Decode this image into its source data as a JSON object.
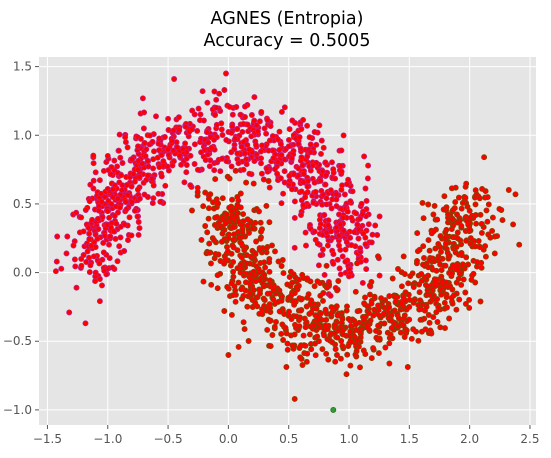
{
  "chart_data": {
    "type": "scatter",
    "title": "AGNES (Entropia)",
    "subtitle": "Accuracy = 0.5005",
    "xlabel": "",
    "ylabel": "",
    "xlim": [
      -1.57,
      2.55
    ],
    "ylim": [
      -1.11,
      1.57
    ],
    "x_ticks": [
      -1.5,
      -1.0,
      -0.5,
      0.0,
      0.5,
      1.0,
      1.5,
      2.0,
      2.5
    ],
    "y_ticks": [
      -1.0,
      -0.5,
      0.0,
      0.5,
      1.0,
      1.5
    ],
    "x_tick_labels": [
      "−1.5",
      "−1.0",
      "−0.5",
      "0.0",
      "0.5",
      "1.0",
      "1.5",
      "2.0",
      "2.5"
    ],
    "y_tick_labels": [
      "−1.0",
      "−0.5",
      "0.0",
      "0.5",
      "1.0",
      "1.5"
    ],
    "grid": true,
    "colors": {
      "background": "#e5e5e5",
      "grid": "#ffffff",
      "marker_fill": "#ff0000",
      "edge_upper_moon": "#c0208a",
      "edge_lower_moon": "#7a4a00",
      "edge_green_point": "#2e9e2e"
    },
    "series": [
      {
        "shape": "upper-moon",
        "edge": "edge_upper_moon",
        "samples": [
          [
            -1.22,
            0.1
          ],
          [
            -1.2,
            0.3
          ],
          [
            -1.15,
            0.52
          ],
          [
            -1.1,
            0.73
          ],
          [
            -1.0,
            0.85
          ],
          [
            -0.85,
            0.95
          ],
          [
            -0.7,
            1.05
          ],
          [
            -0.5,
            1.12
          ],
          [
            -0.3,
            1.18
          ],
          [
            -0.1,
            1.2
          ],
          [
            0.1,
            1.15
          ],
          [
            0.3,
            1.05
          ],
          [
            0.5,
            0.92
          ],
          [
            0.7,
            0.78
          ],
          [
            0.85,
            0.6
          ],
          [
            0.95,
            0.4
          ],
          [
            1.02,
            0.2
          ],
          [
            -1.1,
            0.0
          ],
          [
            -0.95,
            0.3
          ],
          [
            -0.75,
            0.75
          ]
        ]
      },
      {
        "shape": "lower-moon",
        "edge": "edge_lower_moon",
        "samples": [
          [
            0.0,
            0.25
          ],
          [
            0.1,
            0.0
          ],
          [
            0.2,
            -0.2
          ],
          [
            0.35,
            -0.35
          ],
          [
            0.55,
            -0.45
          ],
          [
            0.75,
            -0.5
          ],
          [
            0.95,
            -0.45
          ],
          [
            1.15,
            -0.4
          ],
          [
            1.35,
            -0.35
          ],
          [
            1.5,
            -0.25
          ],
          [
            1.65,
            -0.1
          ],
          [
            1.8,
            0.05
          ],
          [
            1.9,
            0.25
          ],
          [
            2.0,
            0.45
          ],
          [
            2.05,
            0.6
          ],
          [
            2.15,
            0.55
          ],
          [
            1.7,
            0.3
          ],
          [
            0.9,
            -0.6
          ],
          [
            0.65,
            -0.65
          ],
          [
            1.2,
            -0.55
          ]
        ]
      }
    ],
    "highlight_points": [
      {
        "x": 0.87,
        "y": -1.0,
        "edge": "edge_green_point"
      },
      {
        "x": -0.02,
        "y": 1.45,
        "edge": "edge_upper_moon"
      },
      {
        "x": -0.45,
        "y": 1.41,
        "edge": "edge_upper_moon"
      },
      {
        "x": 2.38,
        "y": 0.57,
        "edge": "edge_lower_moon"
      },
      {
        "x": 2.12,
        "y": 0.84,
        "edge": "edge_lower_moon"
      },
      {
        "x": 0.55,
        "y": -0.92,
        "edge": "edge_lower_moon"
      },
      {
        "x": -1.32,
        "y": -0.29,
        "edge": "edge_upper_moon"
      },
      {
        "x": -1.43,
        "y": 0.01,
        "edge": "edge_upper_moon"
      },
      {
        "x": 0.0,
        "y": -0.6,
        "edge": "edge_lower_moon"
      }
    ]
  }
}
